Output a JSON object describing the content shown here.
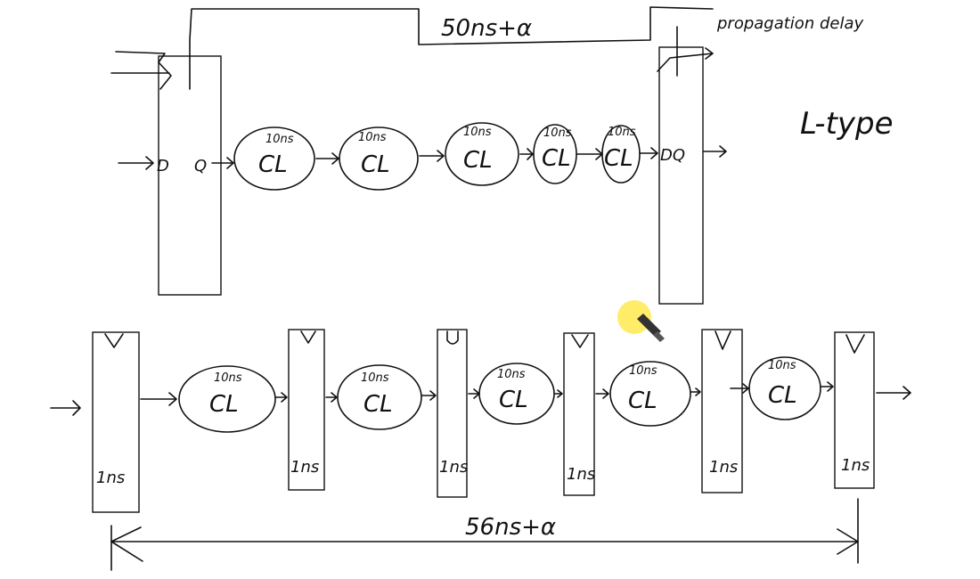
{
  "annotations": {
    "top_delay": "50ns+α",
    "propagation": "propagation delay",
    "ltype": "L-type",
    "bottom_delay": "56ns+α"
  },
  "top_row": {
    "input_label": "D",
    "output_label": "Q",
    "out_reg_label": "DQ",
    "blocks": [
      {
        "label": "CL",
        "delay": "10ns"
      },
      {
        "label": "CL",
        "delay": "10ns"
      },
      {
        "label": "CL",
        "delay": "10ns"
      },
      {
        "label": "CL",
        "delay": "10ns"
      },
      {
        "label": "CL",
        "delay": "10ns"
      }
    ]
  },
  "bottom_row": {
    "blocks": [
      {
        "label": "CL",
        "delay": "10ns"
      },
      {
        "label": "CL",
        "delay": "10ns"
      },
      {
        "label": "CL",
        "delay": "10ns"
      },
      {
        "label": "CL",
        "delay": "10ns"
      },
      {
        "label": "CL",
        "delay": "10ns"
      }
    ],
    "registers": [
      {
        "delay": "1ns"
      },
      {
        "delay": "1ns"
      },
      {
        "delay": "1ns"
      },
      {
        "delay": "1ns"
      },
      {
        "delay": "1ns"
      },
      {
        "delay": "1ns"
      }
    ]
  },
  "colors": {
    "ink": "#111111",
    "pointer": "#ffe94d"
  }
}
